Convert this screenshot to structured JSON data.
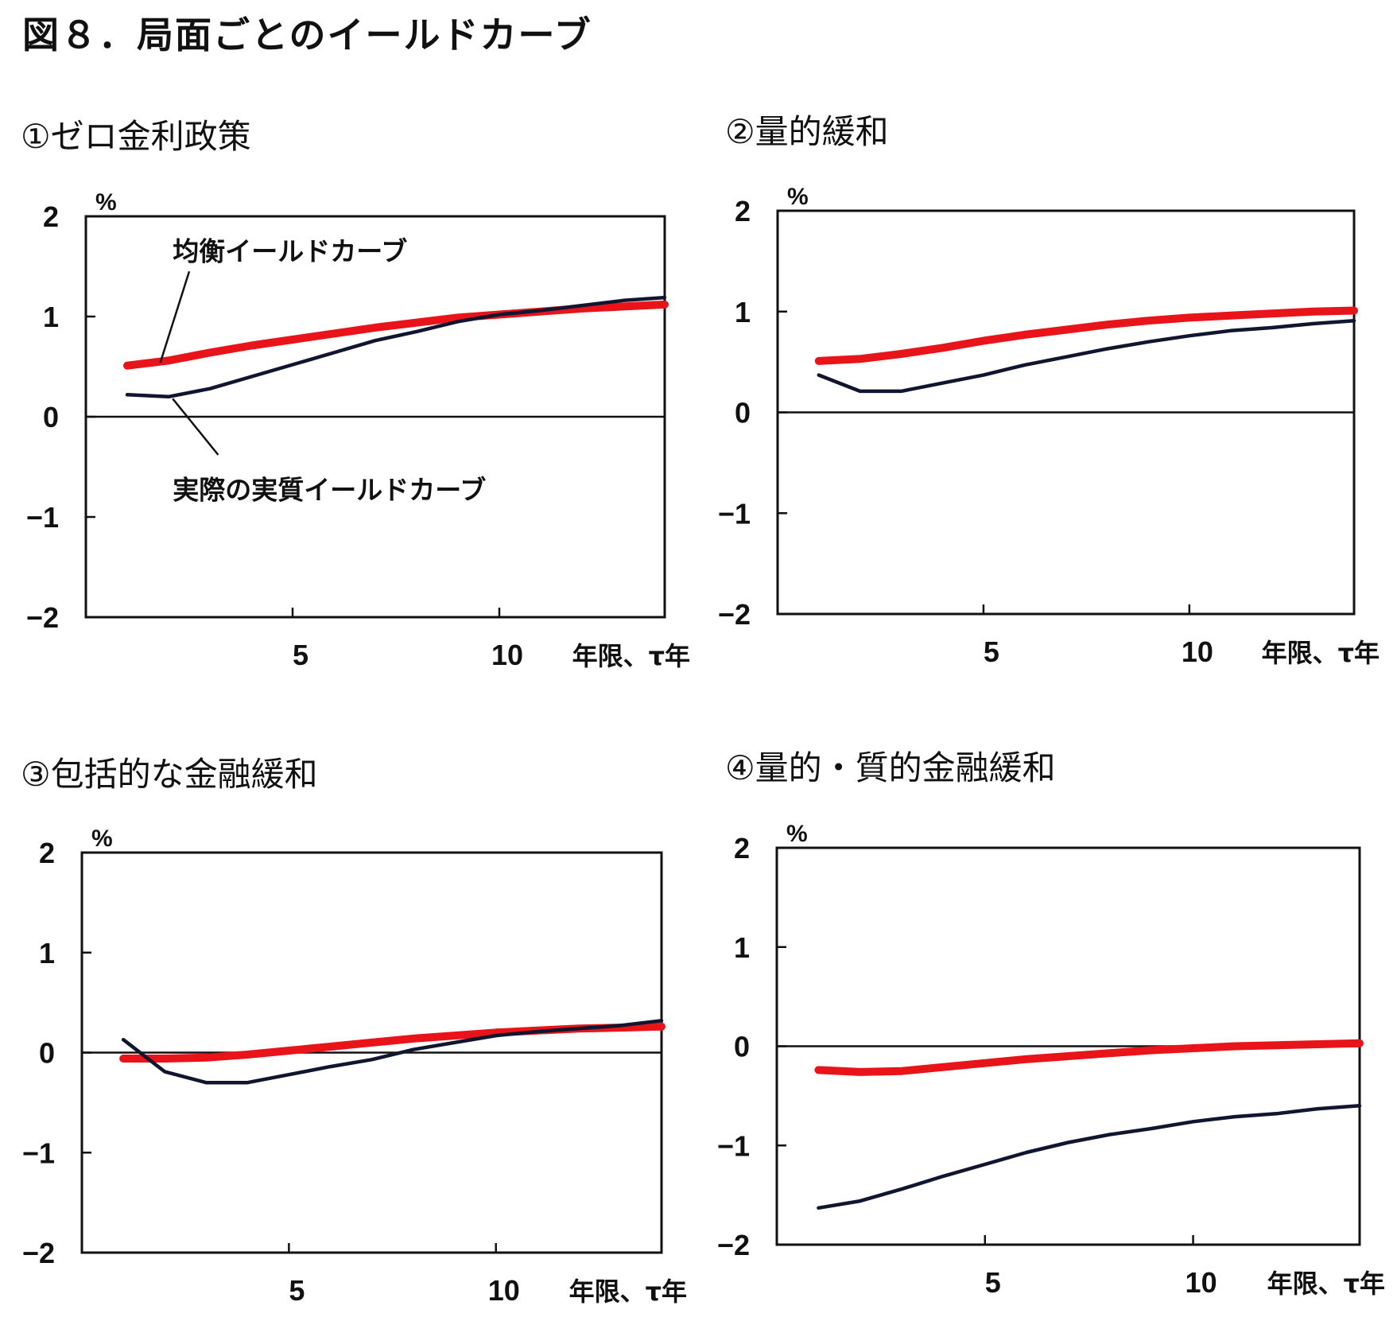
{
  "figure_title": "図８．局面ごとのイールドカーブ",
  "colors": {
    "equilibrium": "#e8141a",
    "actual": "#101530",
    "axis": "#111111"
  },
  "panels": [
    {
      "title": "①ゼロ金利政策"
    },
    {
      "title": "②量的緩和"
    },
    {
      "title": "③包括的な金融緩和"
    },
    {
      "title": "④量的・質的金融緩和"
    }
  ],
  "chart_data": [
    {
      "type": "line",
      "title": "①ゼロ金利政策",
      "ylabel": "%",
      "xlabel": "年限、τ年",
      "xlim": [
        0,
        14
      ],
      "ylim": [
        -2,
        2
      ],
      "yticks": [
        2,
        1,
        0,
        -1,
        -2
      ],
      "xticks": [
        5,
        10
      ],
      "annotations": [
        "均衡イールドカーブ",
        "実際の実質イールドカーブ"
      ],
      "series": [
        {
          "name": "均衡イールドカーブ",
          "color": "#e8141a",
          "x": [
            1,
            2,
            3,
            4,
            5,
            6,
            7,
            8,
            9,
            10,
            11,
            12,
            13,
            14
          ],
          "y": [
            0.51,
            0.56,
            0.64,
            0.71,
            0.77,
            0.83,
            0.89,
            0.94,
            0.99,
            1.02,
            1.05,
            1.08,
            1.1,
            1.12
          ]
        },
        {
          "name": "実際の実質イールドカーブ",
          "color": "#101530",
          "x": [
            1,
            2,
            3,
            4,
            5,
            6,
            7,
            8,
            9,
            10,
            11,
            12,
            13,
            14
          ],
          "y": [
            0.22,
            0.2,
            0.28,
            0.4,
            0.52,
            0.64,
            0.76,
            0.85,
            0.95,
            1.02,
            1.06,
            1.11,
            1.16,
            1.19
          ]
        }
      ]
    },
    {
      "type": "line",
      "title": "②量的緩和",
      "ylabel": "%",
      "xlabel": "年限、τ年",
      "xlim": [
        0,
        14
      ],
      "ylim": [
        -2,
        2
      ],
      "yticks": [
        2,
        1,
        0,
        -1,
        -2
      ],
      "xticks": [
        5,
        10
      ],
      "series": [
        {
          "name": "均衡イールドカーブ",
          "color": "#e8141a",
          "x": [
            1,
            2,
            3,
            4,
            5,
            6,
            7,
            8,
            9,
            10,
            11,
            12,
            13,
            14
          ],
          "y": [
            0.51,
            0.53,
            0.58,
            0.64,
            0.71,
            0.77,
            0.82,
            0.87,
            0.91,
            0.94,
            0.96,
            0.98,
            1.0,
            1.01
          ]
        },
        {
          "name": "実際の実質イールドカーブ",
          "color": "#101530",
          "x": [
            1,
            2,
            3,
            4,
            5,
            6,
            7,
            8,
            9,
            10,
            11,
            12,
            13,
            14
          ],
          "y": [
            0.37,
            0.21,
            0.21,
            0.29,
            0.37,
            0.47,
            0.55,
            0.63,
            0.7,
            0.76,
            0.81,
            0.84,
            0.88,
            0.91
          ]
        }
      ]
    },
    {
      "type": "line",
      "title": "③包括的な金融緩和",
      "ylabel": "%",
      "xlabel": "年限、τ年",
      "xlim": [
        0,
        14
      ],
      "ylim": [
        -2,
        2
      ],
      "yticks": [
        2,
        1,
        0,
        -1,
        -2
      ],
      "xticks": [
        5,
        10
      ],
      "series": [
        {
          "name": "均衡イールドカーブ",
          "color": "#e8141a",
          "x": [
            1,
            2,
            3,
            4,
            5,
            6,
            7,
            8,
            9,
            10,
            11,
            12,
            13,
            14
          ],
          "y": [
            -0.06,
            -0.06,
            -0.05,
            -0.02,
            0.02,
            0.06,
            0.1,
            0.14,
            0.17,
            0.2,
            0.22,
            0.24,
            0.25,
            0.26
          ]
        },
        {
          "name": "実際の実質イールドカーブ",
          "color": "#101530",
          "x": [
            1,
            2,
            3,
            4,
            5,
            6,
            7,
            8,
            9,
            10,
            11,
            12,
            13,
            14
          ],
          "y": [
            0.13,
            -0.19,
            -0.3,
            -0.3,
            -0.22,
            -0.14,
            -0.07,
            0.03,
            0.1,
            0.17,
            0.21,
            0.24,
            0.27,
            0.32
          ]
        }
      ]
    },
    {
      "type": "line",
      "title": "④量的・質的金融緩和",
      "ylabel": "%",
      "xlabel": "年限、τ年",
      "xlim": [
        0,
        14
      ],
      "ylim": [
        -2,
        2
      ],
      "yticks": [
        2,
        1,
        0,
        -1,
        -2
      ],
      "xticks": [
        5,
        10
      ],
      "series": [
        {
          "name": "均衡イールドカーブ",
          "color": "#e8141a",
          "x": [
            1,
            2,
            3,
            4,
            5,
            6,
            7,
            8,
            9,
            10,
            11,
            12,
            13,
            14
          ],
          "y": [
            -0.24,
            -0.26,
            -0.25,
            -0.21,
            -0.17,
            -0.13,
            -0.1,
            -0.07,
            -0.04,
            -0.02,
            0.0,
            0.01,
            0.02,
            0.03
          ]
        },
        {
          "name": "実際の実質イールドカーブ",
          "color": "#101530",
          "x": [
            1,
            2,
            3,
            4,
            5,
            6,
            7,
            8,
            9,
            10,
            11,
            12,
            13,
            14
          ],
          "y": [
            -1.63,
            -1.56,
            -1.44,
            -1.31,
            -1.19,
            -1.07,
            -0.97,
            -0.89,
            -0.83,
            -0.76,
            -0.71,
            -0.68,
            -0.63,
            -0.6
          ]
        }
      ]
    }
  ]
}
